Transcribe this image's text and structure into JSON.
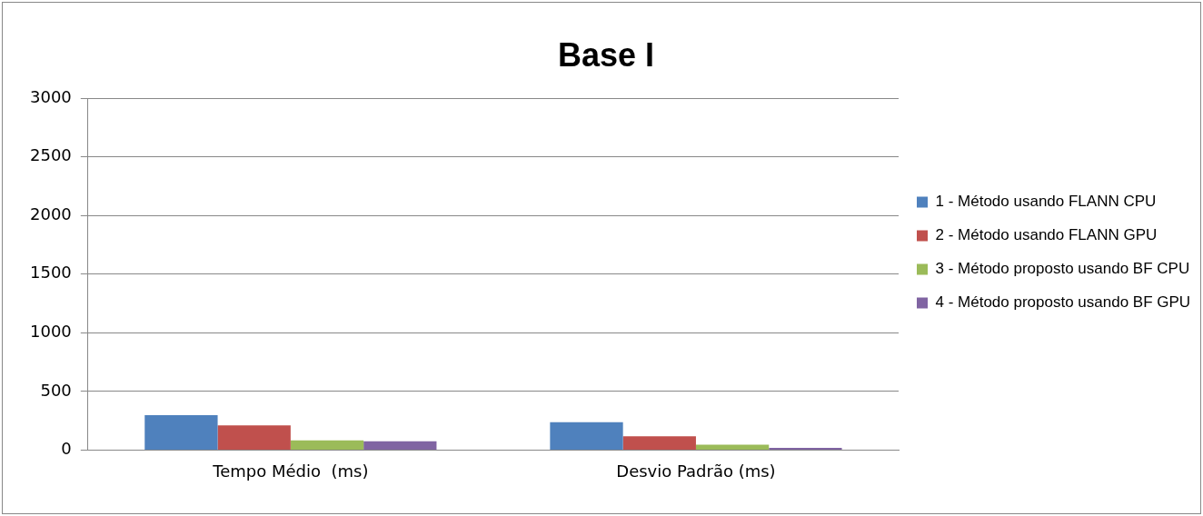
{
  "chart_data": {
    "type": "bar",
    "title": "Base I",
    "categories": [
      "Tempo Médio  (ms)",
      "Desvio Padrão (ms)"
    ],
    "series": [
      {
        "name": "1 - Método usando FLANN CPU",
        "color": "#4f81bd",
        "values": [
          297,
          237
        ]
      },
      {
        "name": "2 - Método usando FLANN GPU",
        "color": "#c0504d",
        "values": [
          211,
          117
        ]
      },
      {
        "name": "3 - Método proposto usando BF CPU",
        "color": "#9bbb59",
        "values": [
          83,
          45
        ]
      },
      {
        "name": "4 - Método proposto usando BF GPU",
        "color": "#8064a2",
        "values": [
          75,
          19
        ]
      }
    ],
    "ylim": [
      0,
      3000
    ],
    "yticks": [
      0,
      500,
      1000,
      1500,
      2000,
      2500,
      3000
    ],
    "grid": "y",
    "legend": "right"
  }
}
